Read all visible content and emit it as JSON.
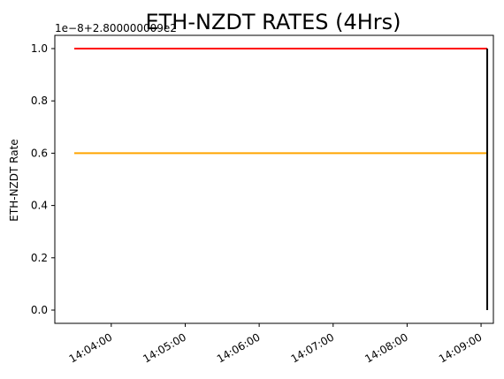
{
  "chart_data": {
    "type": "line",
    "title": "ETH-NZDT RATES (4Hrs)",
    "ylabel": "ETH-NZDT Rate",
    "xlabel": "",
    "offset_text": "1e−8+2.800000009e2",
    "ylim": [
      0.0,
      1.0
    ],
    "xlim": [
      "14:03:30",
      "14:09:10"
    ],
    "x_ticks": [
      "14:04:00",
      "14:05:00",
      "14:06:00",
      "14:07:00",
      "14:08:00",
      "14:09:00"
    ],
    "y_ticks": [
      "0.0",
      "0.2",
      "0.4",
      "0.6",
      "0.8",
      "1.0"
    ],
    "grid": false,
    "series": [
      {
        "color": "#000000",
        "style": "dotted",
        "points": [
          {
            "x": "14:03:30",
            "y": 1.0
          },
          {
            "x": "14:09:05",
            "y": 1.0
          }
        ]
      },
      {
        "color": "#ff0000",
        "style": "solid",
        "points": [
          {
            "x": "14:03:30",
            "y": 1.0
          },
          {
            "x": "14:09:05",
            "y": 1.0
          }
        ]
      },
      {
        "color": "#ffa500",
        "style": "solid",
        "points": [
          {
            "x": "14:03:30",
            "y": 0.6
          },
          {
            "x": "14:09:05",
            "y": 0.6
          }
        ]
      },
      {
        "color": "#000000",
        "style": "solid",
        "points": [
          {
            "x": "14:09:05",
            "y": 1.0
          },
          {
            "x": "14:09:05",
            "y": 0.0
          }
        ]
      }
    ]
  }
}
